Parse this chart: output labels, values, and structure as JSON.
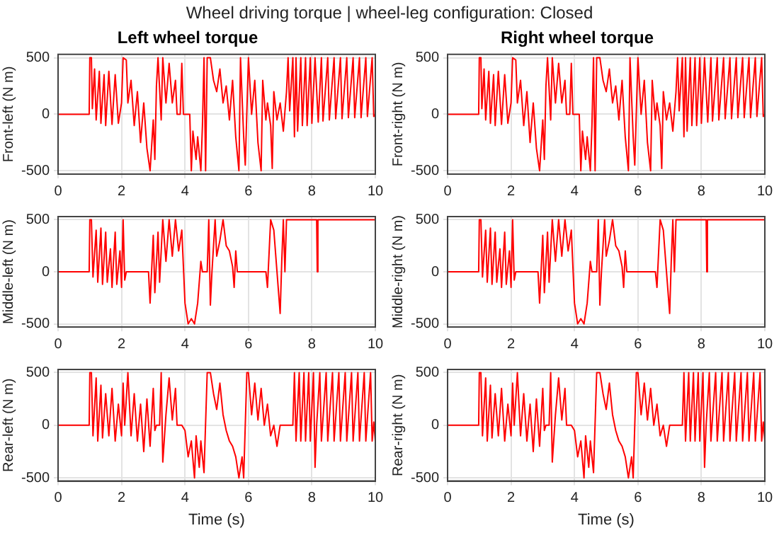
{
  "chart_data": [
    {
      "type": "line",
      "title": "Left wheel torque",
      "ylabel": "Front-left (N m)",
      "annotations": [
        "Wheel driving torque  |  wheel-leg configuration: Closed"
      ],
      "color": "#ff0000",
      "xlim": [
        0,
        10
      ],
      "xticks": [
        0,
        2,
        4,
        6,
        8,
        10
      ],
      "ylim": [
        -530,
        530
      ],
      "yticks": [
        -500,
        0,
        500
      ],
      "grid": true,
      "legend": false,
      "marker": "none",
      "x": [
        0,
        0.98,
        1.0,
        1.05,
        1.08,
        1.15,
        1.2,
        1.3,
        1.35,
        1.45,
        1.5,
        1.6,
        1.7,
        1.8,
        1.9,
        2.0,
        2.05,
        2.15,
        2.2,
        2.3,
        2.4,
        2.5,
        2.6,
        2.7,
        2.8,
        2.9,
        3.0,
        3.05,
        3.1,
        3.15,
        3.25,
        3.3,
        3.4,
        3.5,
        3.6,
        3.7,
        3.75,
        3.85,
        3.9,
        3.95,
        4.15,
        4.2,
        4.25,
        4.35,
        4.4,
        4.5,
        4.55,
        4.6,
        4.65,
        4.7,
        4.8,
        4.9,
        5.0,
        5.1,
        5.2,
        5.3,
        5.4,
        5.5,
        5.6,
        5.7,
        5.75,
        5.85,
        5.9,
        6.0,
        6.1,
        6.2,
        6.3,
        6.4,
        6.45,
        6.55,
        6.6,
        6.7,
        6.75,
        6.8,
        6.9,
        7.0,
        7.1,
        7.2,
        7.25,
        7.3,
        7.4,
        7.45,
        7.5,
        7.55,
        7.65,
        7.7,
        7.8,
        7.85,
        7.95,
        8.0,
        8.1,
        8.2,
        8.3,
        8.35,
        8.5,
        8.55,
        8.7,
        8.75,
        8.9,
        8.95,
        9.1,
        9.15,
        9.3,
        9.35,
        9.5,
        9.55,
        9.7,
        9.75,
        9.9,
        9.95,
        10
      ],
      "values": [
        0,
        0,
        500,
        500,
        50,
        400,
        -50,
        380,
        -80,
        350,
        -100,
        380,
        -90,
        350,
        -80,
        100,
        500,
        480,
        100,
        300,
        -100,
        200,
        -250,
        100,
        -300,
        -500,
        -50,
        -400,
        250,
        500,
        -50,
        500,
        100,
        450,
        100,
        300,
        0,
        0,
        450,
        0,
        0,
        -500,
        -150,
        -400,
        -200,
        -500,
        -100,
        500,
        -500,
        500,
        500,
        300,
        200,
        400,
        100,
        250,
        -50,
        300,
        -200,
        -500,
        500,
        -200,
        -450,
        500,
        0,
        300,
        -250,
        -500,
        300,
        -50,
        100,
        -100,
        -480,
        200,
        -50,
        100,
        -150,
        200,
        500,
        30,
        500,
        -200,
        500,
        -150,
        500,
        -100,
        500,
        -100,
        500,
        -80,
        500,
        -70,
        500,
        -60,
        500,
        -50,
        500,
        -40,
        500,
        -40,
        500,
        -30,
        500,
        -30,
        500,
        -30,
        500,
        -20,
        500,
        -20,
        0
      ]
    },
    {
      "type": "line",
      "title": "Right wheel torque",
      "ylabel": "Front-right (N m)",
      "color": "#ff0000",
      "xlim": [
        0,
        10
      ],
      "xticks": [
        0,
        2,
        4,
        6,
        8,
        10
      ],
      "ylim": [
        -530,
        530
      ],
      "yticks": [
        -500,
        0,
        500
      ],
      "grid": true,
      "legend": false,
      "marker": "none",
      "x": [
        0,
        0.98,
        1.0,
        1.05,
        1.08,
        1.15,
        1.2,
        1.3,
        1.35,
        1.45,
        1.5,
        1.6,
        1.7,
        1.8,
        1.9,
        2.0,
        2.05,
        2.15,
        2.2,
        2.3,
        2.4,
        2.5,
        2.6,
        2.7,
        2.8,
        2.9,
        3.0,
        3.05,
        3.1,
        3.15,
        3.25,
        3.3,
        3.4,
        3.5,
        3.6,
        3.7,
        3.75,
        3.85,
        3.9,
        3.95,
        4.15,
        4.2,
        4.25,
        4.35,
        4.4,
        4.5,
        4.55,
        4.6,
        4.65,
        4.7,
        4.8,
        4.9,
        5.0,
        5.1,
        5.2,
        5.3,
        5.4,
        5.5,
        5.6,
        5.7,
        5.75,
        5.85,
        5.9,
        6.0,
        6.1,
        6.2,
        6.3,
        6.4,
        6.45,
        6.55,
        6.6,
        6.7,
        6.75,
        6.8,
        6.9,
        7.0,
        7.1,
        7.2,
        7.25,
        7.3,
        7.4,
        7.45,
        7.5,
        7.55,
        7.65,
        7.7,
        7.8,
        7.85,
        7.95,
        8.0,
        8.1,
        8.2,
        8.3,
        8.35,
        8.5,
        8.55,
        8.7,
        8.75,
        8.9,
        8.95,
        9.1,
        9.15,
        9.3,
        9.35,
        9.5,
        9.55,
        9.7,
        9.75,
        9.9,
        9.95,
        10
      ],
      "values": [
        0,
        0,
        500,
        500,
        50,
        400,
        -50,
        380,
        -80,
        350,
        -100,
        380,
        -90,
        350,
        -80,
        100,
        500,
        480,
        100,
        300,
        -100,
        200,
        -250,
        100,
        -300,
        -500,
        -50,
        -400,
        250,
        500,
        -50,
        500,
        100,
        450,
        100,
        300,
        0,
        0,
        450,
        0,
        0,
        -500,
        -150,
        -400,
        -200,
        -500,
        -100,
        500,
        -500,
        500,
        500,
        300,
        200,
        400,
        100,
        250,
        -50,
        300,
        -200,
        -500,
        500,
        -200,
        -450,
        500,
        0,
        300,
        -250,
        -500,
        300,
        -50,
        100,
        -100,
        -480,
        200,
        -50,
        100,
        -150,
        200,
        500,
        30,
        500,
        -200,
        500,
        -150,
        500,
        -100,
        500,
        -100,
        500,
        -80,
        500,
        -70,
        500,
        -60,
        500,
        -50,
        500,
        -40,
        500,
        -40,
        500,
        -30,
        500,
        -30,
        500,
        -30,
        500,
        -20,
        500,
        -20,
        0
      ]
    },
    {
      "type": "line",
      "ylabel": "Middle-left (N m)",
      "color": "#ff0000",
      "xlim": [
        0,
        10
      ],
      "xticks": [
        0,
        2,
        4,
        6,
        8,
        10
      ],
      "ylim": [
        -530,
        530
      ],
      "yticks": [
        -500,
        0,
        500
      ],
      "grid": true,
      "legend": false,
      "marker": "none",
      "x": [
        0,
        0.98,
        1.0,
        1.05,
        1.1,
        1.2,
        1.25,
        1.35,
        1.4,
        1.5,
        1.55,
        1.65,
        1.7,
        1.8,
        1.85,
        1.95,
        2.0,
        2.05,
        2.1,
        2.15,
        2.85,
        2.9,
        3.0,
        3.05,
        3.15,
        3.2,
        3.3,
        3.4,
        3.5,
        3.6,
        3.7,
        3.8,
        3.9,
        4.0,
        4.1,
        4.2,
        4.3,
        4.4,
        4.5,
        4.55,
        4.7,
        4.75,
        4.8,
        4.85,
        4.95,
        5.0,
        5.1,
        5.2,
        5.3,
        5.4,
        5.5,
        5.55,
        5.6,
        5.65,
        6.55,
        6.6,
        6.7,
        6.8,
        6.9,
        7.0,
        7.05,
        7.1,
        7.15,
        7.2,
        8.15,
        8.17,
        8.19,
        10
      ],
      "values": [
        0,
        0,
        500,
        500,
        -50,
        400,
        -100,
        420,
        -120,
        380,
        -100,
        220,
        -150,
        380,
        -120,
        200,
        -150,
        500,
        -80,
        0,
        0,
        -300,
        350,
        -200,
        380,
        -100,
        500,
        100,
        500,
        150,
        500,
        200,
        400,
        -300,
        -500,
        -450,
        -500,
        -300,
        100,
        0,
        0,
        500,
        -320,
        0,
        500,
        150,
        300,
        500,
        250,
        200,
        50,
        -150,
        200,
        0,
        0,
        -150,
        500,
        400,
        0,
        -400,
        100,
        500,
        0,
        500,
        500,
        0,
        500,
        500
      ]
    },
    {
      "type": "line",
      "ylabel": "Middle-right (N m)",
      "color": "#ff0000",
      "xlim": [
        0,
        10
      ],
      "xticks": [
        0,
        2,
        4,
        6,
        8,
        10
      ],
      "ylim": [
        -530,
        530
      ],
      "yticks": [
        -500,
        0,
        500
      ],
      "grid": true,
      "legend": false,
      "marker": "none",
      "x": [
        0,
        0.98,
        1.0,
        1.05,
        1.1,
        1.2,
        1.25,
        1.35,
        1.4,
        1.5,
        1.55,
        1.65,
        1.7,
        1.8,
        1.85,
        1.95,
        2.0,
        2.05,
        2.1,
        2.15,
        2.85,
        2.9,
        3.0,
        3.05,
        3.15,
        3.2,
        3.3,
        3.4,
        3.5,
        3.6,
        3.7,
        3.8,
        3.9,
        4.0,
        4.1,
        4.2,
        4.3,
        4.4,
        4.5,
        4.55,
        4.7,
        4.75,
        4.8,
        4.85,
        4.95,
        5.0,
        5.1,
        5.2,
        5.3,
        5.4,
        5.5,
        5.55,
        5.6,
        5.65,
        6.55,
        6.6,
        6.7,
        6.8,
        6.9,
        7.0,
        7.05,
        7.1,
        7.15,
        7.2,
        8.15,
        8.17,
        8.19,
        10
      ],
      "values": [
        0,
        0,
        500,
        500,
        -50,
        400,
        -100,
        420,
        -120,
        380,
        -100,
        220,
        -150,
        380,
        -120,
        200,
        -150,
        500,
        -80,
        0,
        0,
        -300,
        350,
        -200,
        380,
        -100,
        500,
        100,
        500,
        150,
        500,
        200,
        400,
        -300,
        -500,
        -450,
        -500,
        -300,
        100,
        0,
        0,
        500,
        -320,
        0,
        500,
        150,
        300,
        500,
        250,
        200,
        50,
        -150,
        200,
        0,
        0,
        -150,
        500,
        400,
        0,
        -400,
        100,
        500,
        0,
        500,
        500,
        0,
        500,
        500
      ]
    },
    {
      "type": "line",
      "ylabel": "Rear-left (N m)",
      "xlabel": "Time (s)",
      "color": "#ff0000",
      "xlim": [
        0,
        10
      ],
      "xticks": [
        0,
        2,
        4,
        6,
        8,
        10
      ],
      "ylim": [
        -530,
        530
      ],
      "yticks": [
        -500,
        0,
        500
      ],
      "grid": true,
      "legend": false,
      "marker": "none",
      "x": [
        0,
        0.98,
        1.0,
        1.05,
        1.1,
        1.2,
        1.25,
        1.35,
        1.4,
        1.5,
        1.6,
        1.7,
        1.8,
        1.9,
        2.0,
        2.05,
        2.1,
        2.2,
        2.3,
        2.4,
        2.5,
        2.6,
        2.7,
        2.8,
        2.9,
        3.0,
        3.05,
        3.1,
        3.2,
        3.25,
        3.3,
        3.4,
        3.5,
        3.6,
        3.7,
        3.75,
        3.9,
        4.0,
        4.1,
        4.2,
        4.3,
        4.35,
        4.45,
        4.5,
        4.6,
        4.7,
        4.8,
        4.9,
        5.0,
        5.1,
        5.2,
        5.3,
        5.4,
        5.5,
        5.6,
        5.7,
        5.8,
        5.85,
        5.95,
        6.0,
        6.1,
        6.2,
        6.3,
        6.4,
        6.5,
        6.6,
        6.7,
        6.8,
        6.9,
        7.0,
        7.4,
        7.45,
        7.5,
        7.6,
        7.65,
        7.75,
        7.8,
        7.9,
        7.95,
        8.05,
        8.1,
        8.15,
        8.25,
        8.3,
        8.45,
        8.5,
        8.65,
        8.7,
        8.85,
        8.9,
        9.05,
        9.1,
        9.25,
        9.3,
        9.45,
        9.5,
        9.65,
        9.7,
        9.85,
        9.9,
        9.95,
        10
      ],
      "values": [
        0,
        0,
        500,
        500,
        -100,
        450,
        -150,
        380,
        -120,
        300,
        -100,
        350,
        -150,
        200,
        -100,
        400,
        0,
        500,
        -100,
        300,
        -150,
        200,
        -250,
        250,
        -200,
        350,
        -50,
        0,
        0,
        500,
        -350,
        100,
        450,
        50,
        350,
        0,
        0,
        -50,
        -300,
        -150,
        -500,
        -100,
        -400,
        -150,
        -450,
        500,
        500,
        300,
        150,
        400,
        100,
        -50,
        -150,
        -200,
        -300,
        -500,
        -300,
        -500,
        500,
        500,
        100,
        400,
        50,
        350,
        0,
        200,
        -100,
        0,
        -200,
        0,
        0,
        500,
        -150,
        500,
        -150,
        500,
        -150,
        500,
        -150,
        500,
        -400,
        0,
        500,
        -150,
        500,
        -150,
        500,
        -150,
        500,
        -150,
        500,
        -150,
        500,
        -150,
        500,
        -150,
        500,
        -150,
        500,
        -150,
        30,
        -150
      ]
    },
    {
      "type": "line",
      "ylabel": "Rear-right (N m)",
      "xlabel": "Time (s)",
      "color": "#ff0000",
      "xlim": [
        0,
        10
      ],
      "xticks": [
        0,
        2,
        4,
        6,
        8,
        10
      ],
      "ylim": [
        -530,
        530
      ],
      "yticks": [
        -500,
        0,
        500
      ],
      "grid": true,
      "legend": false,
      "marker": "none",
      "x": [
        0,
        0.98,
        1.0,
        1.05,
        1.1,
        1.2,
        1.25,
        1.35,
        1.4,
        1.5,
        1.6,
        1.7,
        1.8,
        1.9,
        2.0,
        2.05,
        2.1,
        2.2,
        2.3,
        2.4,
        2.5,
        2.6,
        2.7,
        2.8,
        2.9,
        3.0,
        3.05,
        3.1,
        3.2,
        3.25,
        3.3,
        3.4,
        3.5,
        3.6,
        3.7,
        3.75,
        3.9,
        4.0,
        4.1,
        4.2,
        4.3,
        4.35,
        4.45,
        4.5,
        4.6,
        4.7,
        4.8,
        4.9,
        5.0,
        5.1,
        5.2,
        5.3,
        5.4,
        5.5,
        5.6,
        5.7,
        5.8,
        5.85,
        5.95,
        6.0,
        6.1,
        6.2,
        6.3,
        6.4,
        6.5,
        6.6,
        6.7,
        6.8,
        6.9,
        7.0,
        7.4,
        7.45,
        7.5,
        7.6,
        7.65,
        7.75,
        7.8,
        7.9,
        7.95,
        8.05,
        8.1,
        8.15,
        8.25,
        8.3,
        8.45,
        8.5,
        8.65,
        8.7,
        8.85,
        8.9,
        9.05,
        9.1,
        9.25,
        9.3,
        9.45,
        9.5,
        9.65,
        9.7,
        9.85,
        9.9,
        9.95,
        10
      ],
      "values": [
        0,
        0,
        500,
        500,
        -100,
        450,
        -150,
        380,
        -120,
        300,
        -100,
        350,
        -150,
        200,
        -100,
        400,
        0,
        500,
        -100,
        300,
        -150,
        200,
        -250,
        250,
        -200,
        350,
        -50,
        0,
        0,
        500,
        -350,
        100,
        450,
        50,
        350,
        0,
        0,
        -50,
        -300,
        -150,
        -500,
        -100,
        -400,
        -150,
        -450,
        500,
        500,
        300,
        150,
        400,
        100,
        -50,
        -150,
        -200,
        -300,
        -500,
        -300,
        -500,
        500,
        500,
        100,
        400,
        50,
        350,
        0,
        200,
        -100,
        0,
        -200,
        0,
        0,
        500,
        -150,
        500,
        -150,
        500,
        -150,
        500,
        -150,
        500,
        -400,
        0,
        500,
        -150,
        500,
        -150,
        500,
        -150,
        500,
        -150,
        500,
        -150,
        500,
        -150,
        500,
        -150,
        500,
        -150,
        500,
        -150,
        30,
        -150
      ]
    }
  ]
}
